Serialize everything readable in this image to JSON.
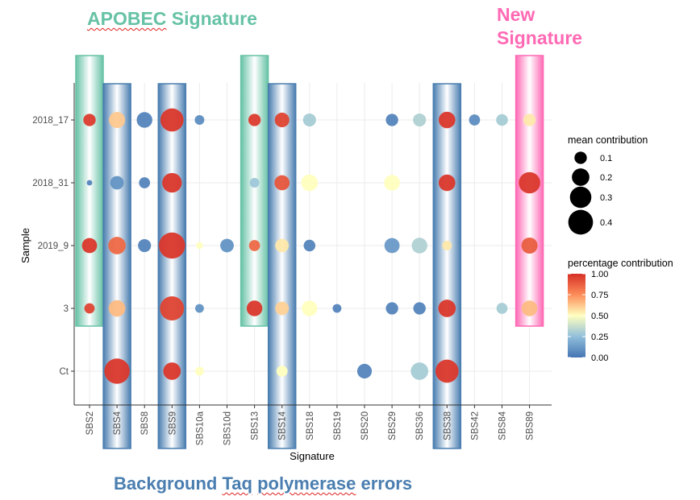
{
  "annotations": {
    "apobec_word": "APOBEC",
    "apobec_rest": " Signature",
    "new_line1": "New",
    "new_line2": "Signature",
    "bg_pre": "Background ",
    "bg_taq": "Taq",
    "bg_mid": " ",
    "bg_poly": "polymerase",
    "bg_post": " errors"
  },
  "colors": {
    "apobec": "#66C2A5",
    "new": "#FF69B4",
    "background_errors": "#4A7EB0",
    "scale_low": "#4575B4",
    "scale_mid": "#FFFFBF",
    "scale_high": "#D73027"
  },
  "chart_data": {
    "type": "scatter",
    "xlabel": "Signature",
    "ylabel": "Sample",
    "categories_x": [
      "SBS2",
      "SBS4",
      "SBS8",
      "SBS9",
      "SBS10a",
      "SBS10d",
      "SBS13",
      "SBS14",
      "SBS18",
      "SBS19",
      "SBS20",
      "SBS29",
      "SBS36",
      "SBS38",
      "SBS42",
      "SBS84",
      "SBS89"
    ],
    "categories_y": [
      "2018_17",
      "2018_31",
      "2019_9",
      "3",
      "Ct"
    ],
    "highlight_groups": [
      {
        "annotation": "APOBEC Signature",
        "signatures": [
          "SBS2",
          "SBS13"
        ],
        "color": "#66C2A5"
      },
      {
        "annotation": "Background Taq polymerase errors",
        "signatures": [
          "SBS4",
          "SBS9",
          "SBS14",
          "SBS38"
        ],
        "color": "#4A7EB0"
      },
      {
        "annotation": "New Signature",
        "signatures": [
          "SBS89"
        ],
        "color": "#FF69B4"
      }
    ],
    "points": [
      {
        "x": "SBS2",
        "y": "2018_17",
        "mean": 0.1,
        "pct": 0.97
      },
      {
        "x": "SBS4",
        "y": "2018_17",
        "mean": 0.17,
        "pct": 0.62
      },
      {
        "x": "SBS8",
        "y": "2018_17",
        "mean": 0.16,
        "pct": 0.05
      },
      {
        "x": "SBS9",
        "y": "2018_17",
        "mean": 0.35,
        "pct": 0.98
      },
      {
        "x": "SBS10a",
        "y": "2018_17",
        "mean": 0.06,
        "pct": 0.08
      },
      {
        "x": "SBS13",
        "y": "2018_17",
        "mean": 0.1,
        "pct": 0.97
      },
      {
        "x": "SBS14",
        "y": "2018_17",
        "mean": 0.14,
        "pct": 0.95
      },
      {
        "x": "SBS18",
        "y": "2018_17",
        "mean": 0.11,
        "pct": 0.3
      },
      {
        "x": "SBS29",
        "y": "2018_17",
        "mean": 0.1,
        "pct": 0.05
      },
      {
        "x": "SBS36",
        "y": "2018_17",
        "mean": 0.11,
        "pct": 0.32
      },
      {
        "x": "SBS38",
        "y": "2018_17",
        "mean": 0.18,
        "pct": 0.98
      },
      {
        "x": "SBS42",
        "y": "2018_17",
        "mean": 0.08,
        "pct": 0.08
      },
      {
        "x": "SBS84",
        "y": "2018_17",
        "mean": 0.09,
        "pct": 0.3
      },
      {
        "x": "SBS89",
        "y": "2018_17",
        "mean": 0.1,
        "pct": 0.55
      },
      {
        "x": "SBS2",
        "y": "2018_31",
        "mean": 0.02,
        "pct": 0.05
      },
      {
        "x": "SBS4",
        "y": "2018_31",
        "mean": 0.12,
        "pct": 0.1
      },
      {
        "x": "SBS8",
        "y": "2018_31",
        "mean": 0.08,
        "pct": 0.05
      },
      {
        "x": "SBS9",
        "y": "2018_31",
        "mean": 0.25,
        "pct": 0.98
      },
      {
        "x": "SBS13",
        "y": "2018_31",
        "mean": 0.06,
        "pct": 0.28
      },
      {
        "x": "SBS14",
        "y": "2018_31",
        "mean": 0.15,
        "pct": 0.9
      },
      {
        "x": "SBS18",
        "y": "2018_31",
        "mean": 0.18,
        "pct": 0.5
      },
      {
        "x": "SBS29",
        "y": "2018_31",
        "mean": 0.16,
        "pct": 0.5
      },
      {
        "x": "SBS38",
        "y": "2018_31",
        "mean": 0.18,
        "pct": 0.98
      },
      {
        "x": "SBS89",
        "y": "2018_31",
        "mean": 0.3,
        "pct": 0.98
      },
      {
        "x": "SBS2",
        "y": "2019_9",
        "mean": 0.15,
        "pct": 0.98
      },
      {
        "x": "SBS4",
        "y": "2019_9",
        "mean": 0.2,
        "pct": 0.85
      },
      {
        "x": "SBS8",
        "y": "2019_9",
        "mean": 0.11,
        "pct": 0.05
      },
      {
        "x": "SBS9",
        "y": "2019_9",
        "mean": 0.45,
        "pct": 0.98
      },
      {
        "x": "SBS10a",
        "y": "2019_9",
        "mean": 0.03,
        "pct": 0.5
      },
      {
        "x": "SBS10d",
        "y": "2019_9",
        "mean": 0.12,
        "pct": 0.1
      },
      {
        "x": "SBS13",
        "y": "2019_9",
        "mean": 0.08,
        "pct": 0.85
      },
      {
        "x": "SBS14",
        "y": "2019_9",
        "mean": 0.12,
        "pct": 0.55
      },
      {
        "x": "SBS18",
        "y": "2019_9",
        "mean": 0.09,
        "pct": 0.05
      },
      {
        "x": "SBS29",
        "y": "2019_9",
        "mean": 0.15,
        "pct": 0.12
      },
      {
        "x": "SBS36",
        "y": "2019_9",
        "mean": 0.16,
        "pct": 0.32
      },
      {
        "x": "SBS38",
        "y": "2019_9",
        "mean": 0.06,
        "pct": 0.55
      },
      {
        "x": "SBS89",
        "y": "2019_9",
        "mean": 0.17,
        "pct": 0.88
      },
      {
        "x": "SBS2",
        "y": "3",
        "mean": 0.07,
        "pct": 0.95
      },
      {
        "x": "SBS4",
        "y": "3",
        "mean": 0.18,
        "pct": 0.65
      },
      {
        "x": "SBS9",
        "y": "3",
        "mean": 0.38,
        "pct": 0.95
      },
      {
        "x": "SBS10a",
        "y": "3",
        "mean": 0.05,
        "pct": 0.1
      },
      {
        "x": "SBS13",
        "y": "3",
        "mean": 0.16,
        "pct": 0.98
      },
      {
        "x": "SBS14",
        "y": "3",
        "mean": 0.12,
        "pct": 0.6
      },
      {
        "x": "SBS18",
        "y": "3",
        "mean": 0.16,
        "pct": 0.5
      },
      {
        "x": "SBS19",
        "y": "3",
        "mean": 0.05,
        "pct": 0.05
      },
      {
        "x": "SBS29",
        "y": "3",
        "mean": 0.1,
        "pct": 0.05
      },
      {
        "x": "SBS36",
        "y": "3",
        "mean": 0.1,
        "pct": 0.05
      },
      {
        "x": "SBS38",
        "y": "3",
        "mean": 0.2,
        "pct": 0.98
      },
      {
        "x": "SBS84",
        "y": "3",
        "mean": 0.08,
        "pct": 0.3
      },
      {
        "x": "SBS89",
        "y": "3",
        "mean": 0.16,
        "pct": 0.65
      },
      {
        "x": "SBS4",
        "y": "Ct",
        "mean": 0.42,
        "pct": 0.98
      },
      {
        "x": "SBS9",
        "y": "Ct",
        "mean": 0.2,
        "pct": 0.98
      },
      {
        "x": "SBS10a",
        "y": "Ct",
        "mean": 0.05,
        "pct": 0.5
      },
      {
        "x": "SBS14",
        "y": "Ct",
        "mean": 0.08,
        "pct": 0.5
      },
      {
        "x": "SBS20",
        "y": "Ct",
        "mean": 0.14,
        "pct": 0.05
      },
      {
        "x": "SBS36",
        "y": "Ct",
        "mean": 0.2,
        "pct": 0.3
      },
      {
        "x": "SBS38",
        "y": "Ct",
        "mean": 0.35,
        "pct": 0.98
      }
    ],
    "size_legend": {
      "title": "mean contribution",
      "values": [
        0.1,
        0.2,
        0.3,
        0.4
      ],
      "labels": [
        "0.1",
        "0.2",
        "0.3",
        "0.4"
      ]
    },
    "color_legend": {
      "title": "percentage contribution",
      "range": [
        0,
        1
      ],
      "ticks": [
        "0.00",
        "0.25",
        "0.50",
        "0.75",
        "1.00"
      ]
    },
    "grid": true
  }
}
